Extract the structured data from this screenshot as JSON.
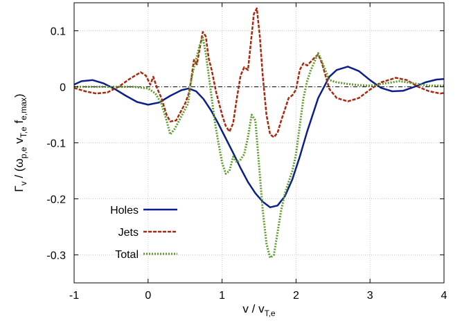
{
  "chart_data": {
    "type": "line",
    "xlabel": "v / v",
    "xlabel_sub": "T,e",
    "ylabel": "Γ",
    "ylabel_parts": [
      "Γ",
      "v",
      " / (ω",
      "p,e",
      " v",
      "T,e",
      " f",
      "e,max",
      ")"
    ],
    "xlim": [
      -1,
      4
    ],
    "ylim": [
      -0.35,
      0.15
    ],
    "x_ticks": [
      -1,
      0,
      1,
      2,
      3,
      4
    ],
    "x_tick_labels": [
      "-1",
      "0",
      "1",
      "2",
      "3",
      "4"
    ],
    "y_ticks": [
      0.1,
      0,
      -0.1,
      -0.2,
      -0.3
    ],
    "y_tick_labels": [
      "0.1",
      "0",
      "-0.1",
      "-0.2",
      "-0.3"
    ],
    "grid": true,
    "legend_position": "bottom-left",
    "reference_line": {
      "y": 0,
      "style": "dash-dot",
      "color": "#000000"
    },
    "series": [
      {
        "name": "Holes",
        "color": "#0b1f8c",
        "style": "solid",
        "x": [
          -1.0,
          -0.9,
          -0.75,
          -0.6,
          -0.45,
          -0.3,
          -0.15,
          0.0,
          0.15,
          0.3,
          0.45,
          0.55,
          0.65,
          0.75,
          0.85,
          0.95,
          1.05,
          1.15,
          1.25,
          1.35,
          1.45,
          1.55,
          1.65,
          1.75,
          1.85,
          1.95,
          2.05,
          2.15,
          2.3,
          2.45,
          2.55,
          2.7,
          2.85,
          3.0,
          3.15,
          3.3,
          3.45,
          3.6,
          3.75,
          3.9,
          4.0
        ],
        "y": [
          0.004,
          0.01,
          0.012,
          0.006,
          -0.004,
          -0.016,
          -0.027,
          -0.032,
          -0.028,
          -0.016,
          -0.006,
          -0.003,
          -0.008,
          -0.022,
          -0.042,
          -0.066,
          -0.092,
          -0.118,
          -0.145,
          -0.17,
          -0.19,
          -0.205,
          -0.215,
          -0.212,
          -0.195,
          -0.165,
          -0.125,
          -0.08,
          -0.02,
          0.018,
          0.03,
          0.036,
          0.028,
          0.012,
          -0.002,
          -0.008,
          -0.007,
          0.0,
          0.008,
          0.013,
          0.014
        ]
      },
      {
        "name": "Jets",
        "color": "#a8280e",
        "style": "dashed",
        "x": [
          -1.0,
          -0.85,
          -0.7,
          -0.55,
          -0.4,
          -0.25,
          -0.1,
          -0.03,
          0.03,
          0.07,
          0.12,
          0.18,
          0.25,
          0.3,
          0.38,
          0.45,
          0.5,
          0.55,
          0.58,
          0.62,
          0.66,
          0.7,
          0.74,
          0.78,
          0.82,
          0.86,
          0.92,
          1.0,
          1.05,
          1.1,
          1.15,
          1.2,
          1.25,
          1.3,
          1.35,
          1.39,
          1.43,
          1.47,
          1.51,
          1.55,
          1.6,
          1.65,
          1.7,
          1.75,
          1.8,
          1.85,
          1.9,
          1.95,
          2.0,
          2.05,
          2.1,
          2.15,
          2.2,
          2.25,
          2.3,
          2.35,
          2.45,
          2.55,
          2.7,
          2.85,
          3.0,
          3.15,
          3.35,
          3.5,
          3.65,
          3.8,
          3.95,
          4.0
        ],
        "y": [
          -0.002,
          -0.008,
          -0.012,
          -0.01,
          0.0,
          0.014,
          0.026,
          0.02,
          0.004,
          0.018,
          -0.002,
          -0.02,
          -0.05,
          -0.062,
          -0.06,
          -0.042,
          -0.03,
          -0.012,
          0.01,
          0.048,
          0.04,
          0.07,
          0.098,
          0.09,
          0.05,
          0.03,
          -0.01,
          -0.05,
          -0.07,
          -0.08,
          -0.065,
          -0.02,
          0.02,
          0.035,
          0.03,
          0.08,
          0.13,
          0.14,
          0.09,
          0.02,
          -0.05,
          -0.085,
          -0.09,
          -0.082,
          -0.06,
          -0.04,
          -0.02,
          -0.015,
          -0.005,
          0.03,
          0.042,
          0.038,
          0.045,
          0.052,
          0.058,
          0.042,
          -0.004,
          -0.02,
          -0.026,
          -0.02,
          -0.005,
          0.008,
          0.016,
          0.012,
          0.0,
          -0.008,
          -0.012,
          -0.011
        ]
      },
      {
        "name": "Total",
        "color": "#5b9a2a",
        "style": "dotted",
        "x": [
          -1.0,
          -0.8,
          -0.6,
          -0.4,
          -0.2,
          0.0,
          0.1,
          0.18,
          0.25,
          0.3,
          0.36,
          0.42,
          0.48,
          0.54,
          0.58,
          0.62,
          0.66,
          0.7,
          0.74,
          0.78,
          0.82,
          0.86,
          0.9,
          0.95,
          1.0,
          1.05,
          1.1,
          1.15,
          1.2,
          1.25,
          1.3,
          1.35,
          1.4,
          1.45,
          1.5,
          1.55,
          1.6,
          1.65,
          1.7,
          1.75,
          1.8,
          1.85,
          1.9,
          1.95,
          2.0,
          2.05,
          2.1,
          2.15,
          2.2,
          2.25,
          2.3,
          2.35,
          2.45,
          2.55,
          2.7,
          2.85,
          3.0,
          3.2,
          3.4,
          3.6,
          3.8,
          4.0
        ],
        "y": [
          0.0,
          0.0,
          0.0,
          0.0,
          0.0,
          -0.003,
          -0.012,
          -0.03,
          -0.06,
          -0.085,
          -0.075,
          -0.06,
          -0.045,
          -0.03,
          0.01,
          0.035,
          0.055,
          0.075,
          0.088,
          0.06,
          0.02,
          -0.02,
          -0.06,
          -0.1,
          -0.135,
          -0.155,
          -0.15,
          -0.125,
          -0.135,
          -0.13,
          -0.12,
          -0.09,
          -0.05,
          -0.06,
          -0.14,
          -0.22,
          -0.28,
          -0.305,
          -0.3,
          -0.26,
          -0.22,
          -0.19,
          -0.17,
          -0.15,
          -0.12,
          -0.07,
          -0.02,
          0.01,
          0.03,
          0.045,
          0.06,
          0.045,
          0.012,
          0.008,
          0.005,
          0.003,
          0.002,
          0.006,
          0.01,
          0.006,
          0.002,
          0.002
        ]
      }
    ]
  }
}
